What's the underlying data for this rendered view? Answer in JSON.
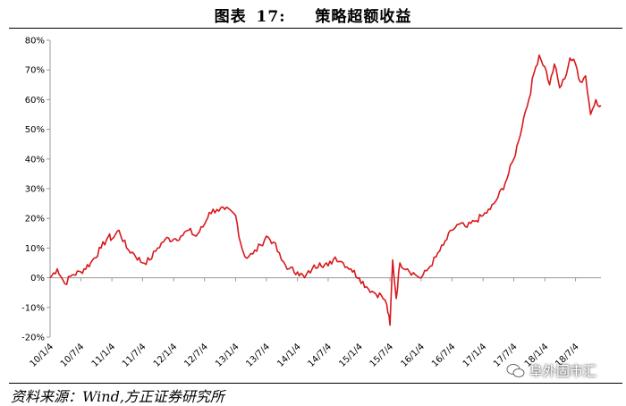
{
  "header": {
    "figure_label": "图表",
    "figure_number": "17:",
    "title": "策略超额收益"
  },
  "footer": {
    "source": "资料来源：Wind,方正证券研究所"
  },
  "watermark": {
    "text": "阜外固市汇",
    "icon": "wechat-icon"
  },
  "colors": {
    "line": "#d7191c",
    "axis": "#9a9a9a"
  },
  "chart_data": {
    "type": "line",
    "title": "策略超额收益",
    "ylim": [
      -20,
      80
    ],
    "yticks": [
      -20,
      -10,
      0,
      10,
      20,
      30,
      40,
      50,
      60,
      70,
      80
    ],
    "ytick_labels": [
      "-20%",
      "-10%",
      "0%",
      "10%",
      "20%",
      "30%",
      "40%",
      "50%",
      "60%",
      "70%",
      "80%"
    ],
    "xticks": [
      "10/1/4",
      "10/7/4",
      "11/1/4",
      "11/7/4",
      "12/1/4",
      "12/7/4",
      "13/1/4",
      "13/7/4",
      "14/1/4",
      "14/7/4",
      "15/1/4",
      "15/7/4",
      "16/1/4",
      "16/7/4",
      "17/1/4",
      "17/7/4",
      "18/1/4",
      "18/7/4"
    ],
    "grid": false,
    "series": [
      {
        "points": [
          [
            "10/1/4",
            0
          ],
          [
            "10/2/15",
            3
          ],
          [
            "10/4/1",
            -2
          ],
          [
            "10/5/15",
            1
          ],
          [
            "10/7/4",
            2
          ],
          [
            "10/9/1",
            5
          ],
          [
            "10/11/1",
            10
          ],
          [
            "10/12/15",
            14
          ],
          [
            "11/1/4",
            13
          ],
          [
            "11/2/15",
            16
          ],
          [
            "11/4/1",
            10
          ],
          [
            "11/5/15",
            8
          ],
          [
            "11/7/4",
            5
          ],
          [
            "11/8/15",
            6
          ],
          [
            "11/10/1",
            10
          ],
          [
            "11/11/15",
            13
          ],
          [
            "12/1/4",
            13
          ],
          [
            "12/2/15",
            14
          ],
          [
            "12/4/1",
            16
          ],
          [
            "12/5/15",
            14
          ],
          [
            "12/7/4",
            18
          ],
          [
            "12/8/1",
            22
          ],
          [
            "12/9/15",
            23
          ],
          [
            "12/11/1",
            23
          ],
          [
            "13/1/4",
            21
          ],
          [
            "13/2/1",
            12
          ],
          [
            "13/3/1",
            7
          ],
          [
            "13/4/15",
            8
          ],
          [
            "13/6/1",
            11
          ],
          [
            "13/7/4",
            14
          ],
          [
            "13/8/15",
            12
          ],
          [
            "13/10/1",
            6
          ],
          [
            "13/11/15",
            3
          ],
          [
            "14/1/4",
            2
          ],
          [
            "14/2/15",
            0
          ],
          [
            "14/4/1",
            3
          ],
          [
            "14/5/15",
            5
          ],
          [
            "14/7/4",
            4
          ],
          [
            "14/8/15",
            7
          ],
          [
            "14/10/1",
            5
          ],
          [
            "14/11/15",
            3
          ],
          [
            "15/1/4",
            0
          ],
          [
            "15/2/15",
            -3
          ],
          [
            "15/4/1",
            -5
          ],
          [
            "15/5/15",
            -6
          ],
          [
            "15/6/15",
            -9
          ],
          [
            "15/7/4",
            -16
          ],
          [
            "15/7/20",
            6
          ],
          [
            "15/8/10",
            -7
          ],
          [
            "15/9/1",
            5
          ],
          [
            "15/10/15",
            3
          ],
          [
            "15/12/1",
            1
          ],
          [
            "16/1/4",
            0
          ],
          [
            "16/2/15",
            3
          ],
          [
            "16/4/1",
            7
          ],
          [
            "16/5/15",
            11
          ],
          [
            "16/7/4",
            16
          ],
          [
            "16/8/15",
            18
          ],
          [
            "16/10/1",
            17
          ],
          [
            "16/11/15",
            19
          ],
          [
            "17/1/4",
            21
          ],
          [
            "17/2/15",
            23
          ],
          [
            "17/4/1",
            27
          ],
          [
            "17/5/15",
            32
          ],
          [
            "17/7/4",
            40
          ],
          [
            "17/8/1",
            46
          ],
          [
            "17/9/1",
            54
          ],
          [
            "17/10/1",
            60
          ],
          [
            "17/11/1",
            69
          ],
          [
            "17/12/1",
            75
          ],
          [
            "18/1/4",
            71
          ],
          [
            "18/2/1",
            65
          ],
          [
            "18/3/1",
            72
          ],
          [
            "18/4/1",
            64
          ],
          [
            "18/5/1",
            67
          ],
          [
            "18/6/1",
            74
          ],
          [
            "18/7/4",
            72
          ],
          [
            "18/8/1",
            66
          ],
          [
            "18/9/1",
            68
          ],
          [
            "18/10/1",
            55
          ],
          [
            "18/11/1",
            60
          ],
          [
            "18/12/1",
            58
          ]
        ]
      }
    ]
  }
}
